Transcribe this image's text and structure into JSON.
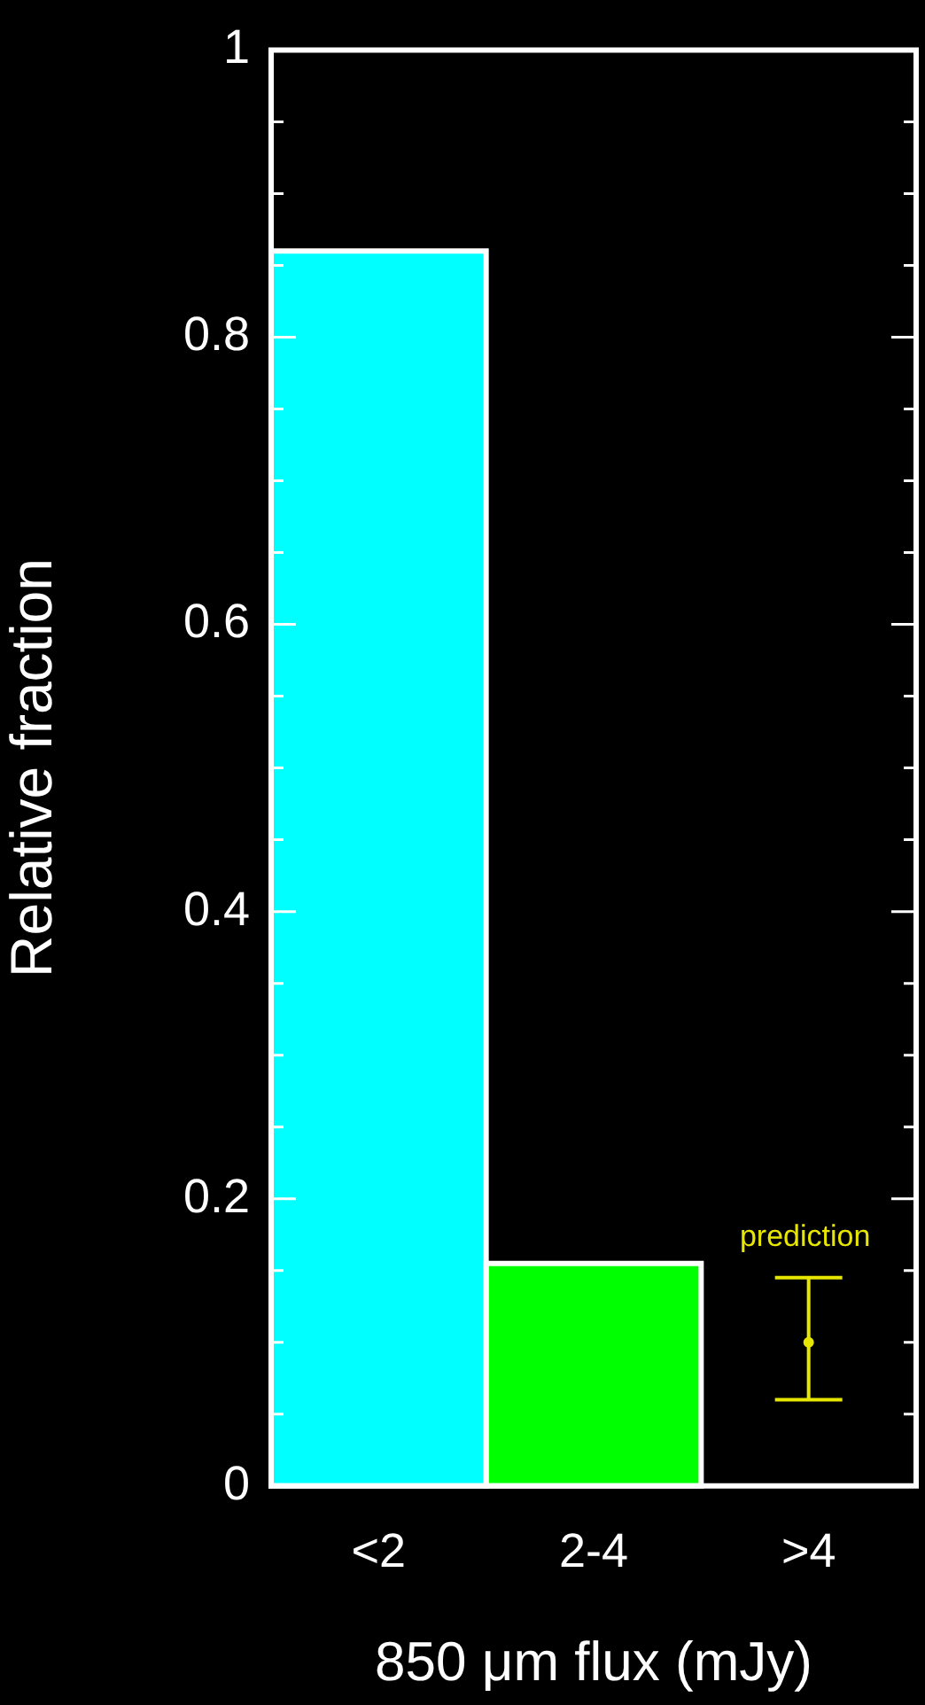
{
  "chart_data": {
    "type": "bar",
    "xlabel": "850 μm flux (mJy)",
    "ylabel": "Relative fraction",
    "categories": [
      "<2",
      "2-4",
      ">4"
    ],
    "series": [
      {
        "colors": [
          "#00ffff",
          "#00ff00",
          null
        ],
        "values": [
          0.86,
          0.155,
          null
        ]
      },
      {
        "type": "scatter",
        "name": "prediction",
        "color": "#e6e600",
        "x": [
          ">4"
        ],
        "values": [
          0.1
        ],
        "errors": [
          [
            0.06,
            0.145
          ]
        ]
      }
    ],
    "ylim": [
      0,
      1
    ],
    "yticks": [
      0,
      {
        "value": 0.05,
        "label": null
      },
      {
        "value": 0.1,
        "label": null
      },
      {
        "value": 0.15,
        "label": null
      },
      0.2,
      {
        "value": 0.25,
        "label": null
      },
      {
        "value": 0.3,
        "label": null
      },
      {
        "value": 0.35,
        "label": null
      },
      0.4,
      {
        "value": 0.45,
        "label": null
      },
      {
        "value": 0.5,
        "label": null
      },
      {
        "value": 0.55,
        "label": null
      },
      0.6,
      {
        "value": 0.65,
        "label": null
      },
      {
        "value": 0.7,
        "label": null
      },
      {
        "value": 0.75,
        "label": null
      },
      0.8,
      {
        "value": 0.85,
        "label": null
      },
      {
        "value": 0.9,
        "label": null
      },
      {
        "value": 0.95,
        "label": null
      },
      1
    ],
    "legend": false,
    "grid": false
  }
}
